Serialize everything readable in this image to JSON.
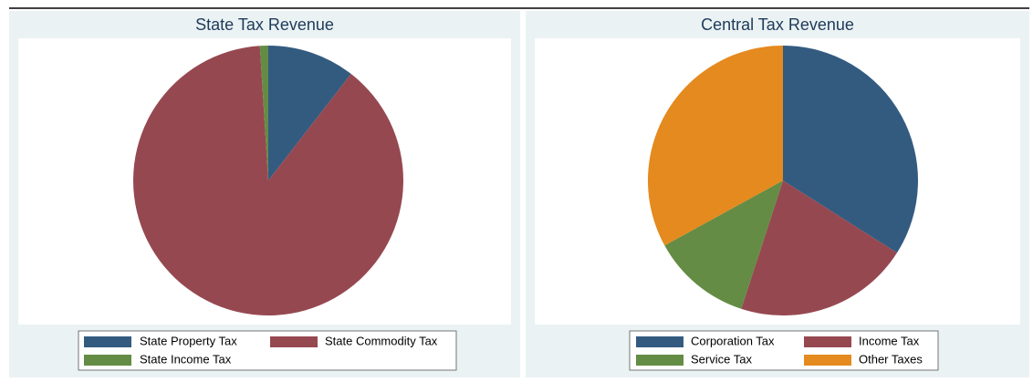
{
  "chart_data": [
    {
      "type": "pie",
      "title": "State Tax Revenue",
      "categories": [
        "State Property Tax",
        "State Commodity Tax",
        "State Income Tax"
      ],
      "values": [
        10.5,
        88.5,
        1
      ],
      "colors": [
        "#335b80",
        "#964850",
        "#648c44"
      ]
    },
    {
      "type": "pie",
      "title": "Central Tax Revenue",
      "categories": [
        "Corporation Tax",
        "Income Tax",
        "Service Tax",
        "Other Taxes"
      ],
      "values": [
        34,
        21,
        12,
        33
      ],
      "colors": [
        "#335b80",
        "#964850",
        "#648c44",
        "#e48a1f"
      ]
    }
  ]
}
